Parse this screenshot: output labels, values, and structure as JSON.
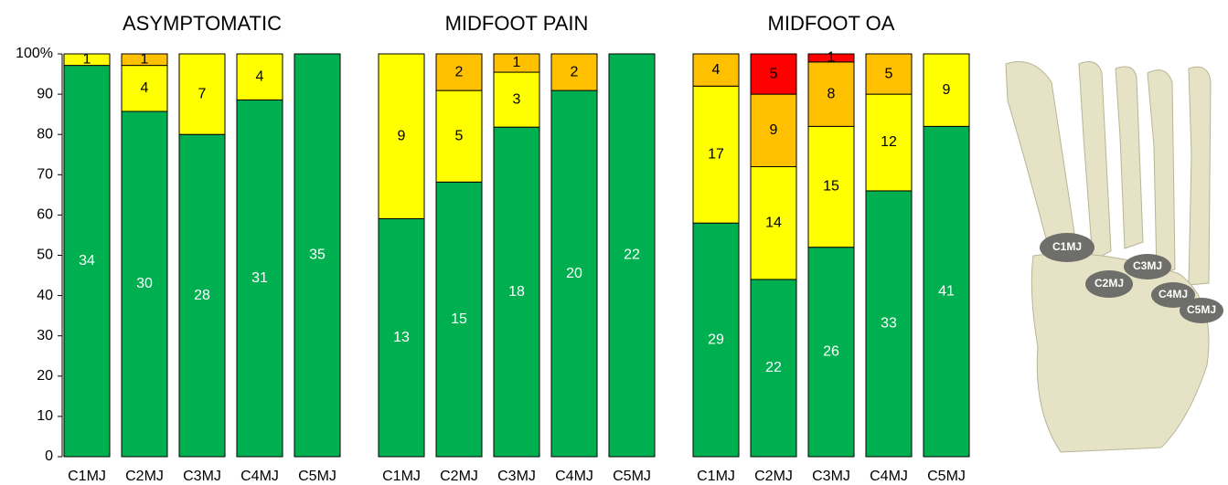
{
  "chart_data": [
    {
      "type": "bar",
      "stacked": "percent",
      "title": "ASYMPTOMATIC",
      "categories": [
        "C1MJ",
        "C2MJ",
        "C3MJ",
        "C4MJ",
        "C5MJ"
      ],
      "series": [
        {
          "color": "#00b050",
          "label_color": "#ffffff",
          "values": [
            34,
            30,
            28,
            31,
            35
          ]
        },
        {
          "color": "#ffff00",
          "label_color": "#000000",
          "values": [
            1,
            4,
            7,
            4,
            null
          ]
        },
        {
          "color": "#ffc000",
          "label_color": "#000000",
          "values": [
            null,
            1,
            null,
            null,
            null
          ]
        }
      ],
      "ylim": [
        0,
        100
      ],
      "yticks": [
        0,
        10,
        20,
        30,
        40,
        50,
        60,
        70,
        80,
        90,
        {
          "value": 100,
          "label": "100%"
        }
      ]
    },
    {
      "type": "bar",
      "stacked": "percent",
      "title": "MIDFOOT PAIN",
      "categories": [
        "C1MJ",
        "C2MJ",
        "C3MJ",
        "C4MJ",
        "C5MJ"
      ],
      "series": [
        {
          "color": "#00b050",
          "label_color": "#ffffff",
          "values": [
            13,
            15,
            18,
            20,
            22
          ]
        },
        {
          "color": "#ffff00",
          "label_color": "#000000",
          "values": [
            9,
            5,
            3,
            null,
            null
          ]
        },
        {
          "color": "#ffc000",
          "label_color": "#000000",
          "values": [
            null,
            2,
            1,
            2,
            null
          ]
        }
      ],
      "ylim": [
        0,
        100
      ]
    },
    {
      "type": "bar",
      "stacked": "percent",
      "title": "MIDFOOT OA",
      "categories": [
        "C1MJ",
        "C2MJ",
        "C3MJ",
        "C4MJ",
        "C5MJ"
      ],
      "series": [
        {
          "color": "#00b050",
          "label_color": "#ffffff",
          "values": [
            29,
            22,
            26,
            33,
            41
          ]
        },
        {
          "color": "#ffff00",
          "label_color": "#000000",
          "values": [
            17,
            14,
            15,
            12,
            9
          ]
        },
        {
          "color": "#ffc000",
          "label_color": "#000000",
          "values": [
            4,
            9,
            8,
            5,
            null
          ]
        },
        {
          "color": "#ff0000",
          "label_color": "#000000",
          "values": [
            null,
            5,
            1,
            null,
            null
          ]
        }
      ],
      "ylim": [
        0,
        100
      ]
    }
  ],
  "foot_image": {
    "labels": [
      "C1MJ",
      "C2MJ",
      "C3MJ",
      "C4MJ",
      "C5MJ"
    ]
  }
}
